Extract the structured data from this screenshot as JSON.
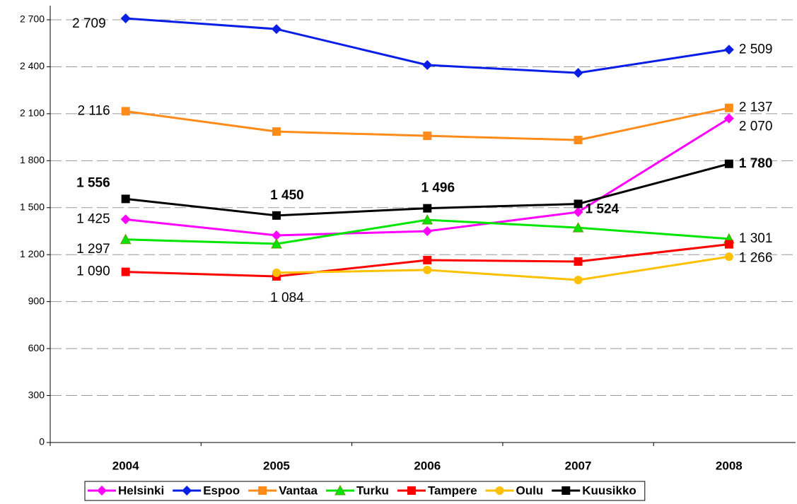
{
  "chart_data": {
    "type": "line",
    "categories": [
      "2004",
      "2005",
      "2006",
      "2007",
      "2008"
    ],
    "ylim": [
      0,
      2700
    ],
    "yticks": [
      0,
      300,
      600,
      900,
      {
        "value": 1200,
        "label": "1 200"
      },
      {
        "value": 1500,
        "label": "1 500"
      },
      {
        "value": 1800,
        "label": "1 800"
      },
      {
        "value": 2100,
        "label": "2 100"
      },
      {
        "value": 2400,
        "label": "2 400"
      },
      {
        "value": 2700,
        "label": "2 700"
      }
    ],
    "grid": true,
    "legend": "bottom",
    "series": [
      {
        "name": "Helsinki",
        "color": "#ff00ff",
        "marker": "diamond",
        "values": [
          1425,
          1323,
          1350,
          1472,
          2070
        ],
        "value_labels": [
          "1 425",
          null,
          null,
          null,
          "2 070"
        ]
      },
      {
        "name": "Espoo",
        "color": "#0a1fe6",
        "marker": "diamond",
        "values": [
          2709,
          2641,
          2411,
          2361,
          2509
        ],
        "value_labels": [
          "2 709",
          null,
          null,
          null,
          "2 509"
        ]
      },
      {
        "name": "Vantaa",
        "color": "#ff8c1a",
        "marker": "square",
        "values": [
          2116,
          1986,
          1959,
          1932,
          2137
        ],
        "value_labels": [
          "2 116",
          null,
          null,
          null,
          "2 137"
        ]
      },
      {
        "name": "Turku",
        "color": "#00e600",
        "marker": "triangle",
        "values": [
          1297,
          1269,
          1422,
          1372,
          1301
        ],
        "value_labels": [
          "1 297",
          null,
          null,
          null,
          "1 301"
        ]
      },
      {
        "name": "Tampere",
        "color": "#ff0000",
        "marker": "square",
        "values": [
          1090,
          1061,
          1165,
          1156,
          1266
        ],
        "value_labels": [
          "1 090",
          null,
          null,
          null,
          "1 266"
        ]
      },
      {
        "name": "Oulu",
        "color": "#ffc000",
        "marker": "circle",
        "values": [
          null,
          1084,
          1102,
          1038,
          1187
        ],
        "value_labels": [
          null,
          "1 084",
          null,
          null,
          null
        ]
      },
      {
        "name": "Kuusikko",
        "color": "#000000",
        "marker": "square",
        "values": [
          1556,
          1450,
          1496,
          1524,
          1780
        ],
        "value_labels": [
          "1 556",
          "1 450",
          "1 496",
          "1 524",
          "1 780"
        ]
      }
    ]
  }
}
